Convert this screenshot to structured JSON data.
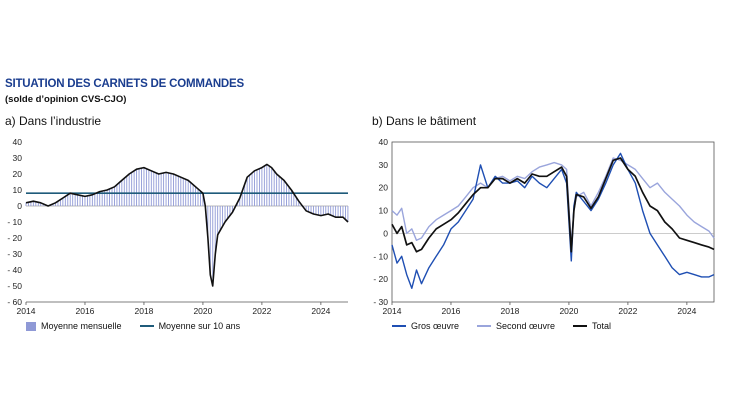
{
  "title": "SITUATION DES CARNETS DE COMMANDES",
  "subtitle": "(solde d’opinion CVS-CJO)",
  "colors": {
    "bars": "#8f99d6",
    "average": "#1f5b7a",
    "industry_line": "#111111",
    "gros": "#1f4fb3",
    "second": "#9aa5dc",
    "total": "#111111"
  },
  "chart_data": [
    {
      "type": "bar",
      "panel_title": "a)  Dans l’industrie",
      "x_ticks": [
        "2014",
        "2016",
        "2018",
        "2020",
        "2022",
        "2024"
      ],
      "y_ticks": [
        "40",
        "30",
        "20",
        "10",
        "0",
        "- 10",
        "- 20",
        "- 30",
        "- 40",
        "- 50",
        "- 60"
      ],
      "xlim": [
        2014.0,
        2024.92
      ],
      "ylim": [
        -60,
        40
      ],
      "ten_year_average": 8,
      "legend": {
        "bars": "Moyenne mensuelle",
        "average": "Moyenne sur 10 ans"
      },
      "series": [
        {
          "name": "Moyenne mensuelle",
          "points": [
            [
              2014.0,
              2
            ],
            [
              2014.25,
              3
            ],
            [
              2014.5,
              2
            ],
            [
              2014.75,
              0
            ],
            [
              2015.0,
              2
            ],
            [
              2015.25,
              5
            ],
            [
              2015.5,
              8
            ],
            [
              2015.75,
              7
            ],
            [
              2016.0,
              6
            ],
            [
              2016.25,
              7
            ],
            [
              2016.5,
              9
            ],
            [
              2016.75,
              10
            ],
            [
              2017.0,
              12
            ],
            [
              2017.25,
              16
            ],
            [
              2017.5,
              20
            ],
            [
              2017.75,
              23
            ],
            [
              2018.0,
              24
            ],
            [
              2018.25,
              22
            ],
            [
              2018.5,
              20
            ],
            [
              2018.75,
              21
            ],
            [
              2019.0,
              20
            ],
            [
              2019.25,
              18
            ],
            [
              2019.5,
              16
            ],
            [
              2019.75,
              12
            ],
            [
              2020.0,
              8
            ],
            [
              2020.08,
              0
            ],
            [
              2020.17,
              -20
            ],
            [
              2020.25,
              -43
            ],
            [
              2020.33,
              -50
            ],
            [
              2020.42,
              -30
            ],
            [
              2020.5,
              -18
            ],
            [
              2020.75,
              -10
            ],
            [
              2021.0,
              -4
            ],
            [
              2021.25,
              5
            ],
            [
              2021.5,
              18
            ],
            [
              2021.75,
              22
            ],
            [
              2022.0,
              24
            ],
            [
              2022.17,
              26
            ],
            [
              2022.33,
              24
            ],
            [
              2022.5,
              20
            ],
            [
              2022.75,
              16
            ],
            [
              2023.0,
              10
            ],
            [
              2023.25,
              3
            ],
            [
              2023.5,
              -3
            ],
            [
              2023.75,
              -5
            ],
            [
              2024.0,
              -6
            ],
            [
              2024.25,
              -5
            ],
            [
              2024.5,
              -7
            ],
            [
              2024.75,
              -7
            ],
            [
              2024.92,
              -10
            ]
          ]
        }
      ]
    },
    {
      "type": "line",
      "panel_title": "b)  Dans le bâtiment",
      "x_ticks": [
        "2014",
        "2016",
        "2018",
        "2020",
        "2022",
        "2024"
      ],
      "y_ticks": [
        "40",
        "30",
        "20",
        "10",
        "0",
        "- 10",
        "- 20",
        "- 30"
      ],
      "xlim": [
        2014.0,
        2024.92
      ],
      "ylim": [
        -30,
        40
      ],
      "legend": {
        "gros": "Gros œuvre",
        "second": "Second œuvre",
        "total": "Total"
      },
      "series": [
        {
          "name": "Gros œuvre",
          "points": [
            [
              2014.0,
              -5
            ],
            [
              2014.17,
              -13
            ],
            [
              2014.33,
              -10
            ],
            [
              2014.5,
              -18
            ],
            [
              2014.67,
              -24
            ],
            [
              2014.83,
              -16
            ],
            [
              2015.0,
              -22
            ],
            [
              2015.25,
              -15
            ],
            [
              2015.5,
              -10
            ],
            [
              2015.75,
              -5
            ],
            [
              2016.0,
              2
            ],
            [
              2016.25,
              5
            ],
            [
              2016.5,
              10
            ],
            [
              2016.75,
              15
            ],
            [
              2017.0,
              30
            ],
            [
              2017.25,
              20
            ],
            [
              2017.5,
              25
            ],
            [
              2017.75,
              22
            ],
            [
              2018.0,
              22
            ],
            [
              2018.25,
              23
            ],
            [
              2018.5,
              20
            ],
            [
              2018.75,
              25
            ],
            [
              2019.0,
              22
            ],
            [
              2019.25,
              20
            ],
            [
              2019.5,
              24
            ],
            [
              2019.75,
              28
            ],
            [
              2019.92,
              22
            ],
            [
              2020.08,
              -12
            ],
            [
              2020.17,
              12
            ],
            [
              2020.25,
              18
            ],
            [
              2020.5,
              14
            ],
            [
              2020.75,
              10
            ],
            [
              2021.0,
              15
            ],
            [
              2021.25,
              22
            ],
            [
              2021.5,
              30
            ],
            [
              2021.75,
              35
            ],
            [
              2022.0,
              28
            ],
            [
              2022.25,
              22
            ],
            [
              2022.5,
              10
            ],
            [
              2022.75,
              0
            ],
            [
              2023.0,
              -5
            ],
            [
              2023.25,
              -10
            ],
            [
              2023.5,
              -15
            ],
            [
              2023.75,
              -18
            ],
            [
              2024.0,
              -17
            ],
            [
              2024.25,
              -18
            ],
            [
              2024.5,
              -19
            ],
            [
              2024.75,
              -19
            ],
            [
              2024.92,
              -18
            ]
          ]
        },
        {
          "name": "Second œuvre",
          "points": [
            [
              2014.0,
              10
            ],
            [
              2014.17,
              8
            ],
            [
              2014.33,
              11
            ],
            [
              2014.5,
              0
            ],
            [
              2014.67,
              2
            ],
            [
              2014.83,
              -3
            ],
            [
              2015.0,
              -2
            ],
            [
              2015.25,
              3
            ],
            [
              2015.5,
              6
            ],
            [
              2015.75,
              8
            ],
            [
              2016.0,
              10
            ],
            [
              2016.25,
              12
            ],
            [
              2016.5,
              16
            ],
            [
              2016.75,
              20
            ],
            [
              2017.0,
              22
            ],
            [
              2017.25,
              20
            ],
            [
              2017.5,
              24
            ],
            [
              2017.75,
              25
            ],
            [
              2018.0,
              23
            ],
            [
              2018.25,
              25
            ],
            [
              2018.5,
              24
            ],
            [
              2018.75,
              27
            ],
            [
              2019.0,
              29
            ],
            [
              2019.25,
              30
            ],
            [
              2019.5,
              31
            ],
            [
              2019.75,
              30
            ],
            [
              2019.92,
              28
            ],
            [
              2020.08,
              -5
            ],
            [
              2020.17,
              10
            ],
            [
              2020.25,
              16
            ],
            [
              2020.5,
              18
            ],
            [
              2020.75,
              12
            ],
            [
              2021.0,
              18
            ],
            [
              2021.25,
              25
            ],
            [
              2021.5,
              33
            ],
            [
              2021.75,
              32
            ],
            [
              2022.0,
              30
            ],
            [
              2022.25,
              28
            ],
            [
              2022.5,
              24
            ],
            [
              2022.75,
              20
            ],
            [
              2023.0,
              22
            ],
            [
              2023.25,
              18
            ],
            [
              2023.5,
              15
            ],
            [
              2023.75,
              12
            ],
            [
              2024.0,
              8
            ],
            [
              2024.25,
              5
            ],
            [
              2024.5,
              3
            ],
            [
              2024.75,
              1
            ],
            [
              2024.92,
              -2
            ]
          ]
        },
        {
          "name": "Total",
          "points": [
            [
              2014.0,
              4
            ],
            [
              2014.17,
              0
            ],
            [
              2014.33,
              3
            ],
            [
              2014.5,
              -5
            ],
            [
              2014.67,
              -4
            ],
            [
              2014.83,
              -8
            ],
            [
              2015.0,
              -7
            ],
            [
              2015.25,
              -2
            ],
            [
              2015.5,
              2
            ],
            [
              2015.75,
              4
            ],
            [
              2016.0,
              6
            ],
            [
              2016.25,
              9
            ],
            [
              2016.5,
              13
            ],
            [
              2016.75,
              17
            ],
            [
              2017.0,
              20
            ],
            [
              2017.25,
              20
            ],
            [
              2017.5,
              24
            ],
            [
              2017.75,
              24
            ],
            [
              2018.0,
              22
            ],
            [
              2018.25,
              24
            ],
            [
              2018.5,
              22
            ],
            [
              2018.75,
              26
            ],
            [
              2019.0,
              25
            ],
            [
              2019.25,
              25
            ],
            [
              2019.5,
              27
            ],
            [
              2019.75,
              29
            ],
            [
              2019.92,
              25
            ],
            [
              2020.08,
              -8
            ],
            [
              2020.17,
              10
            ],
            [
              2020.25,
              17
            ],
            [
              2020.5,
              16
            ],
            [
              2020.75,
              11
            ],
            [
              2021.0,
              16
            ],
            [
              2021.25,
              24
            ],
            [
              2021.5,
              32
            ],
            [
              2021.75,
              33
            ],
            [
              2022.0,
              28
            ],
            [
              2022.25,
              25
            ],
            [
              2022.5,
              18
            ],
            [
              2022.75,
              12
            ],
            [
              2023.0,
              10
            ],
            [
              2023.25,
              5
            ],
            [
              2023.5,
              2
            ],
            [
              2023.75,
              -2
            ],
            [
              2024.0,
              -3
            ],
            [
              2024.25,
              -4
            ],
            [
              2024.5,
              -5
            ],
            [
              2024.75,
              -6
            ],
            [
              2024.92,
              -7
            ]
          ]
        }
      ]
    }
  ]
}
